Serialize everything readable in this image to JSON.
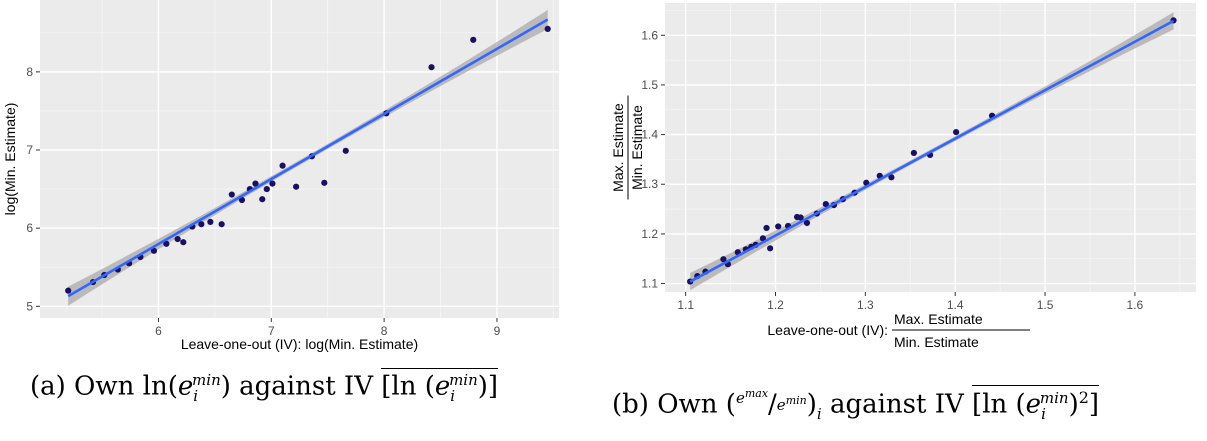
{
  "chart_data": [
    {
      "type": "scatter",
      "xlabel": "Leave-one-out (IV): log(Min. Estimate)",
      "ylabel": "log(Min. Estimate)",
      "xlim": [
        4.95,
        9.55
      ],
      "ylim": [
        4.85,
        8.92
      ],
      "xticks": [
        6,
        7,
        8,
        9
      ],
      "yticks": [
        5,
        6,
        7,
        8
      ],
      "grid": true,
      "fit_line": {
        "x": [
          5.2,
          9.45
        ],
        "y": [
          5.13,
          8.67
        ],
        "color": "#3366ff",
        "band_color": "#a9a9a9"
      },
      "point_color": "#1a1060",
      "points": [
        [
          5.2,
          5.2
        ],
        [
          5.42,
          5.31
        ],
        [
          5.52,
          5.4
        ],
        [
          5.64,
          5.47
        ],
        [
          5.74,
          5.55
        ],
        [
          5.84,
          5.63
        ],
        [
          5.96,
          5.71
        ],
        [
          6.07,
          5.8
        ],
        [
          6.17,
          5.86
        ],
        [
          6.22,
          5.82
        ],
        [
          6.3,
          6.02
        ],
        [
          6.38,
          6.05
        ],
        [
          6.46,
          6.08
        ],
        [
          6.56,
          6.05
        ],
        [
          6.65,
          6.43
        ],
        [
          6.74,
          6.36
        ],
        [
          6.81,
          6.5
        ],
        [
          6.86,
          6.57
        ],
        [
          6.92,
          6.37
        ],
        [
          6.96,
          6.5
        ],
        [
          7.01,
          6.57
        ],
        [
          7.1,
          6.8
        ],
        [
          7.22,
          6.53
        ],
        [
          7.36,
          6.92
        ],
        [
          7.47,
          6.58
        ],
        [
          7.66,
          6.99
        ],
        [
          8.02,
          7.47
        ],
        [
          8.42,
          8.06
        ],
        [
          8.79,
          8.41
        ],
        [
          9.45,
          8.55
        ]
      ]
    },
    {
      "type": "scatter",
      "xlabel_prefix": "Leave-one-out (IV):",
      "xlabel_num": "Max.  Estimate",
      "xlabel_den": "Min.  Estimate",
      "ylabel_num": "Max.  Estimate",
      "ylabel_den": "Min.  Estimate",
      "xlim": [
        1.077,
        1.668
      ],
      "ylim": [
        1.083,
        1.665
      ],
      "xticks": [
        1.1,
        1.2,
        1.3,
        1.4,
        1.5,
        1.6
      ],
      "yticks": [
        1.1,
        1.2,
        1.3,
        1.4,
        1.5,
        1.6
      ],
      "grid": true,
      "fit_line": {
        "x": [
          1.105,
          1.643
        ],
        "y": [
          1.104,
          1.629
        ],
        "color": "#3366ff",
        "band_color": "#a9a9a9"
      },
      "point_color": "#1a1060",
      "points": [
        [
          1.105,
          1.104
        ],
        [
          1.113,
          1.115
        ],
        [
          1.122,
          1.124
        ],
        [
          1.142,
          1.149
        ],
        [
          1.147,
          1.139
        ],
        [
          1.158,
          1.163
        ],
        [
          1.167,
          1.169
        ],
        [
          1.173,
          1.174
        ],
        [
          1.178,
          1.178
        ],
        [
          1.186,
          1.191
        ],
        [
          1.19,
          1.212
        ],
        [
          1.194,
          1.171
        ],
        [
          1.203,
          1.215
        ],
        [
          1.214,
          1.216
        ],
        [
          1.224,
          1.234
        ],
        [
          1.228,
          1.233
        ],
        [
          1.235,
          1.222
        ],
        [
          1.246,
          1.241
        ],
        [
          1.256,
          1.26
        ],
        [
          1.265,
          1.258
        ],
        [
          1.275,
          1.27
        ],
        [
          1.288,
          1.283
        ],
        [
          1.301,
          1.303
        ],
        [
          1.316,
          1.317
        ],
        [
          1.329,
          1.314
        ],
        [
          1.354,
          1.363
        ],
        [
          1.372,
          1.359
        ],
        [
          1.401,
          1.405
        ],
        [
          1.441,
          1.438
        ],
        [
          1.643,
          1.63
        ]
      ]
    }
  ],
  "captions": {
    "a_label": "(a) Own",
    "a_mid": "against IV",
    "b_label": "(b) Own",
    "b_mid": "against IV"
  }
}
